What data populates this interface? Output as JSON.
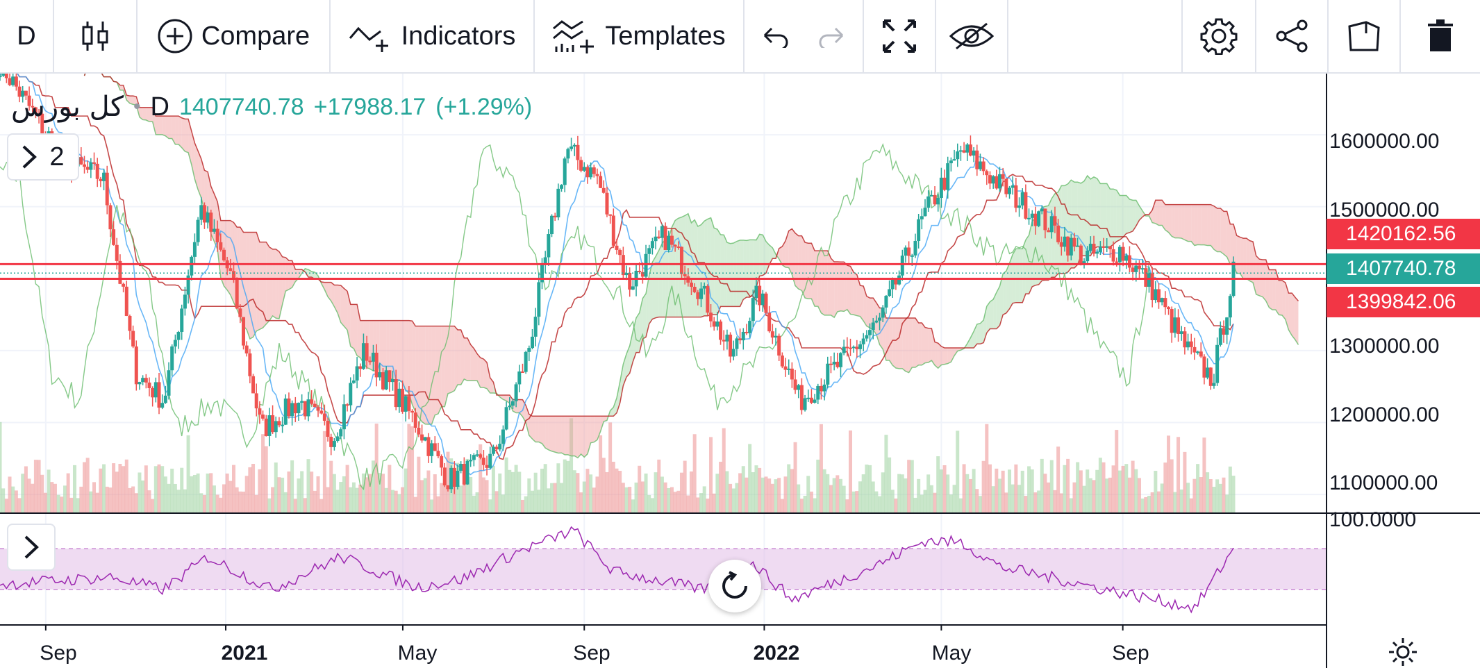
{
  "toolbar": {
    "timeframe": "D",
    "compare_label": "Compare",
    "indicators_label": "Indicators",
    "templates_label": "Templates"
  },
  "legend": {
    "symbol": "کل بورس",
    "interval": "D",
    "price": "1407740.78",
    "change": "+17988.17",
    "change_pct": "(+1.29%)",
    "collapsed_count": "2"
  },
  "colors": {
    "up": "#26a69a",
    "down": "#ef5350",
    "cloud_green": "#a5d6a7",
    "cloud_red": "#ef9a9a",
    "tenkan": "#42a5f5",
    "kijun": "#b71c1c",
    "chikou": "#66bb6a",
    "rsi": "#9c27b0"
  },
  "chart_data": [
    {
      "type": "candlestick",
      "symbol": "کل بورس",
      "interval": "D",
      "y_axis_ticks": [
        "1600000.00",
        "1500000.00",
        "1300000.00",
        "1200000.00",
        "1100000.00"
      ],
      "x_axis_ticks": [
        "Sep",
        "2021",
        "May",
        "Sep",
        "2022",
        "May",
        "Sep"
      ],
      "ylim": [
        1075000,
        1685000
      ],
      "last_price": 1407740.78,
      "last_price_label": "1407740.78",
      "horizontal_lines": [
        {
          "value": 1420162.56,
          "label": "1420162.56",
          "color": "#f23645"
        },
        {
          "value": 1399842.06,
          "label": "1399842.06",
          "color": "#f23645"
        }
      ],
      "approx_close_path": [
        {
          "date": "2020-08-01",
          "close": 1700000
        },
        {
          "date": "2020-09-15",
          "close": 1560000
        },
        {
          "date": "2020-10-10",
          "close": 1540000
        },
        {
          "date": "2020-11-01",
          "close": 1270000
        },
        {
          "date": "2020-11-20",
          "close": 1230000
        },
        {
          "date": "2020-12-15",
          "close": 1500000
        },
        {
          "date": "2021-01-05",
          "close": 1400000
        },
        {
          "date": "2021-01-25",
          "close": 1190000
        },
        {
          "date": "2021-02-20",
          "close": 1230000
        },
        {
          "date": "2021-03-15",
          "close": 1180000
        },
        {
          "date": "2021-04-05",
          "close": 1300000
        },
        {
          "date": "2021-05-10",
          "close": 1200000
        },
        {
          "date": "2021-06-01",
          "close": 1120000
        },
        {
          "date": "2021-07-01",
          "close": 1150000
        },
        {
          "date": "2021-07-25",
          "close": 1300000
        },
        {
          "date": "2021-08-20",
          "close": 1580000
        },
        {
          "date": "2021-09-10",
          "close": 1540000
        },
        {
          "date": "2021-10-01",
          "close": 1390000
        },
        {
          "date": "2021-10-25",
          "close": 1460000
        },
        {
          "date": "2021-11-20",
          "close": 1380000
        },
        {
          "date": "2021-12-10",
          "close": 1290000
        },
        {
          "date": "2021-12-28",
          "close": 1380000
        },
        {
          "date": "2022-01-25",
          "close": 1230000
        },
        {
          "date": "2022-02-20",
          "close": 1280000
        },
        {
          "date": "2022-03-20",
          "close": 1340000
        },
        {
          "date": "2022-04-20",
          "close": 1490000
        },
        {
          "date": "2022-05-15",
          "close": 1580000
        },
        {
          "date": "2022-06-10",
          "close": 1530000
        },
        {
          "date": "2022-07-10",
          "close": 1480000
        },
        {
          "date": "2022-08-05",
          "close": 1430000
        },
        {
          "date": "2022-08-30",
          "close": 1440000
        },
        {
          "date": "2022-09-20",
          "close": 1390000
        },
        {
          "date": "2022-10-15",
          "close": 1300000
        },
        {
          "date": "2022-11-01",
          "close": 1260000
        },
        {
          "date": "2022-11-15",
          "close": 1407740.78
        }
      ],
      "overlays": [
        "ichimoku cloud",
        "volume"
      ]
    },
    {
      "type": "line",
      "pane": "RSI",
      "y_axis_ticks": [
        "100.0000"
      ],
      "ylim": [
        0,
        100
      ],
      "band": [
        30,
        70
      ],
      "approx_values": [
        {
          "date": "2020-08-01",
          "value": 35
        },
        {
          "date": "2020-10-15",
          "value": 42
        },
        {
          "date": "2020-11-20",
          "value": 30
        },
        {
          "date": "2020-12-20",
          "value": 62
        },
        {
          "date": "2021-02-01",
          "value": 30
        },
        {
          "date": "2021-03-20",
          "value": 62
        },
        {
          "date": "2021-05-10",
          "value": 32
        },
        {
          "date": "2021-06-10",
          "value": 40
        },
        {
          "date": "2021-07-20",
          "value": 68
        },
        {
          "date": "2021-08-25",
          "value": 88
        },
        {
          "date": "2021-09-20",
          "value": 48
        },
        {
          "date": "2021-11-20",
          "value": 30
        },
        {
          "date": "2021-12-25",
          "value": 55
        },
        {
          "date": "2022-01-20",
          "value": 20
        },
        {
          "date": "2022-03-20",
          "value": 55
        },
        {
          "date": "2022-04-20",
          "value": 78
        },
        {
          "date": "2022-05-15",
          "value": 76
        },
        {
          "date": "2022-06-10",
          "value": 52
        },
        {
          "date": "2022-07-20",
          "value": 40
        },
        {
          "date": "2022-08-20",
          "value": 30
        },
        {
          "date": "2022-10-20",
          "value": 12
        },
        {
          "date": "2022-11-15",
          "value": 70
        }
      ]
    }
  ]
}
